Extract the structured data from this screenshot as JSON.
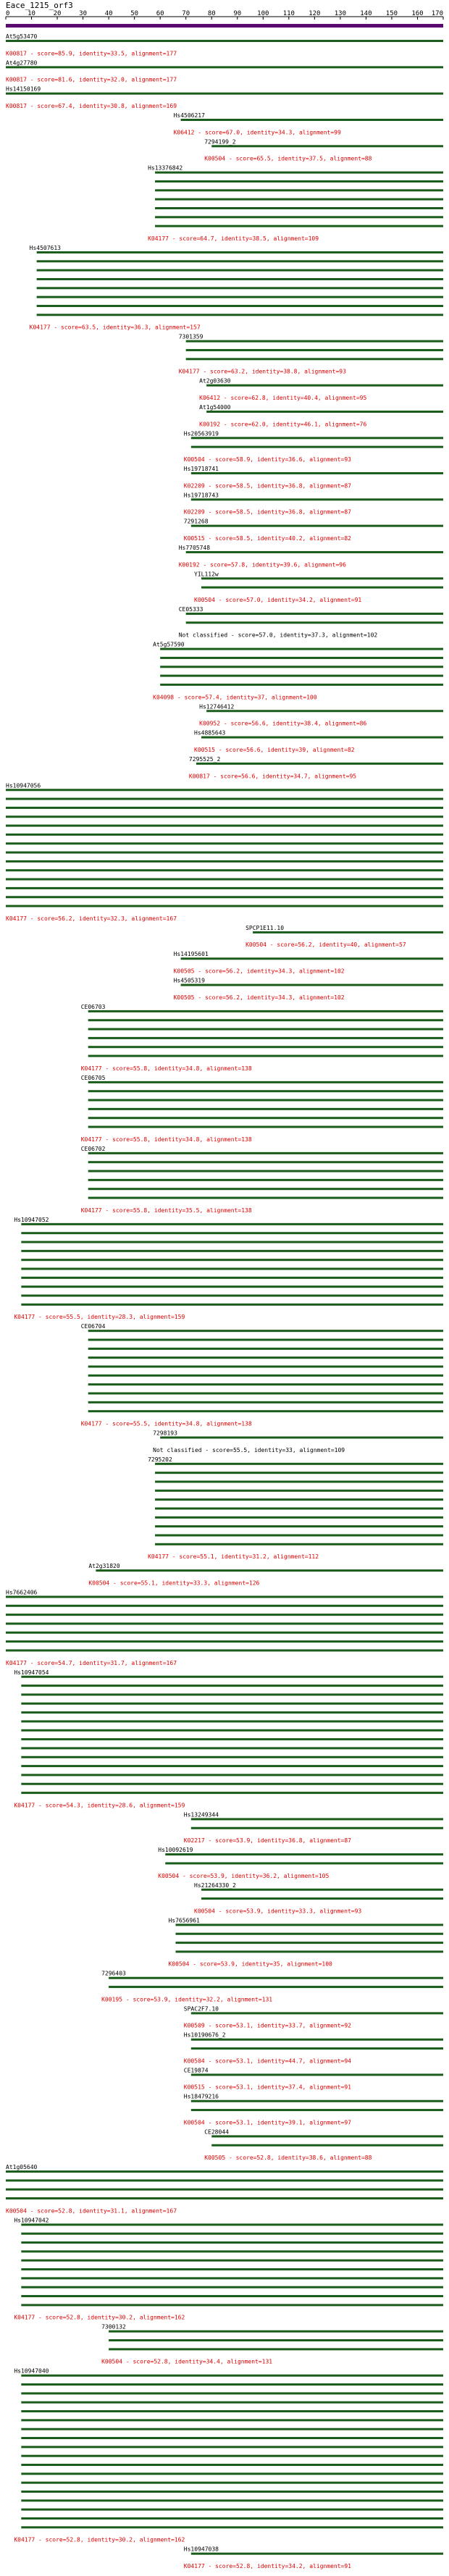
{
  "title": "Eace_1215_orf3",
  "axis": {
    "min": 0,
    "max": 170,
    "ticks": [
      0,
      10,
      20,
      30,
      40,
      50,
      60,
      70,
      80,
      90,
      100,
      110,
      120,
      130,
      140,
      150,
      160,
      170
    ]
  },
  "colors": {
    "query_bar": "#5a0a6e",
    "hit_bar": "#1a5c1a",
    "red_text": "#dd0000",
    "black_text": "#000000",
    "ruler": "#000000"
  },
  "groups": [
    {
      "name": "At5g53470",
      "desc": "K00817 - score=85.9, identity=33.5, alignment=177",
      "bars": [
        [
          0,
          170
        ]
      ]
    },
    {
      "name": "At4g27780",
      "desc": "K00817 - score=81.6, identity=32.0, alignment=177",
      "bars": [
        [
          0,
          170
        ]
      ]
    },
    {
      "name": "Hs14150169",
      "desc": "K00817 - score=67.4, identity=30.8, alignment=169",
      "bars": [
        [
          0,
          170
        ]
      ]
    },
    {
      "name": "Hs4506217",
      "desc": "K06412 - score=67.0, identity=34.3, alignment=99",
      "bars": [
        [
          68,
          170
        ]
      ]
    },
    {
      "name": "7294199_2",
      "desc": "K00504 - score=65.5, identity=37.5, alignment=88",
      "bars": [
        [
          80,
          170
        ]
      ]
    },
    {
      "name": "Hs13376842",
      "desc": "K04177 - score=64.7, identity=38.5, alignment=109",
      "bars": [
        [
          58,
          170
        ],
        [
          58,
          170
        ],
        [
          58,
          170
        ],
        [
          58,
          170
        ],
        [
          58,
          170
        ],
        [
          58,
          170
        ],
        [
          58,
          170
        ]
      ]
    },
    {
      "name": "Hs4507613",
      "desc": "K04177 - score=63.5, identity=36.3, alignment=157",
      "bars": [
        [
          12,
          170
        ],
        [
          12,
          170
        ],
        [
          12,
          170
        ],
        [
          12,
          170
        ],
        [
          12,
          170
        ],
        [
          12,
          170
        ],
        [
          12,
          170
        ],
        [
          12,
          170
        ]
      ]
    },
    {
      "name": "7301359",
      "desc": "K04177 - score=63.2, identity=38.8, alignment=93",
      "bars": [
        [
          70,
          170
        ],
        [
          70,
          170
        ],
        [
          70,
          170
        ]
      ]
    },
    {
      "name": "At2g03630",
      "desc": "K06412 - score=62.8, identity=40.4, alignment=95",
      "bars": [
        [
          78,
          170
        ]
      ]
    },
    {
      "name": "At1g54000",
      "desc": "K00192 - score=62.0, identity=46.1, alignment=76",
      "bars": [
        [
          78,
          170
        ]
      ]
    },
    {
      "name": "Hs20563919",
      "desc": "K00504 - score=58.9, identity=36.6, alignment=93",
      "bars": [
        [
          72,
          170
        ],
        [
          72,
          170
        ]
      ]
    },
    {
      "name": "Hs19718741",
      "desc": "K02209 - score=58.5, identity=36.8, alignment=87",
      "bars": [
        [
          72,
          170
        ]
      ]
    },
    {
      "name": "Hs19718743",
      "desc": "K02209 - score=58.5, identity=36.8, alignment=87",
      "bars": [
        [
          72,
          170
        ]
      ]
    },
    {
      "name": "7291268",
      "desc": "K00515 - score=58.5, identity=40.2, alignment=82",
      "bars": [
        [
          72,
          170
        ]
      ]
    },
    {
      "name": "Hs7705748",
      "desc": "K00192 - score=57.8, identity=39.6, alignment=96",
      "bars": [
        [
          70,
          170
        ]
      ]
    },
    {
      "name": "YIL112w",
      "desc": "K00504 - score=57.0, identity=34.2, alignment=91",
      "bars": [
        [
          76,
          170
        ],
        [
          76,
          170
        ]
      ]
    },
    {
      "name": "CE05333",
      "desc": "Not classified - score=57.0, identity=37.3, alignment=102",
      "bars": [
        [
          70,
          170
        ],
        [
          70,
          170
        ]
      ]
    },
    {
      "name": "At5g57590",
      "desc": "K04098 - score=57.4, identity=37, alignment=100",
      "bars": [
        [
          60,
          170
        ],
        [
          60,
          170
        ],
        [
          60,
          170
        ],
        [
          60,
          170
        ],
        [
          60,
          170
        ]
      ]
    },
    {
      "name": "Hs12746412",
      "desc": "K00952 - score=56.6, identity=38.4, alignment=86",
      "bars": [
        [
          78,
          170
        ]
      ]
    },
    {
      "name": "Hs4885643",
      "desc": "K00515 - score=56.6, identity=39, alignment=82",
      "bars": [
        [
          76,
          170
        ]
      ]
    },
    {
      "name": "7295525_2",
      "desc": "K00817 - score=56.6, identity=34.7, alignment=95",
      "bars": [
        [
          74,
          170
        ]
      ]
    },
    {
      "name": "Hs10947056",
      "desc": "K04177 - score=56.2, identity=32.3, alignment=167",
      "bars": [
        [
          0,
          170
        ],
        [
          0,
          170
        ],
        [
          0,
          170
        ],
        [
          0,
          170
        ],
        [
          0,
          170
        ],
        [
          0,
          170
        ],
        [
          0,
          170
        ],
        [
          0,
          170
        ],
        [
          0,
          170
        ],
        [
          0,
          170
        ],
        [
          0,
          170
        ],
        [
          0,
          170
        ],
        [
          0,
          170
        ],
        [
          0,
          170
        ]
      ]
    },
    {
      "name": "SPCP1E11.10",
      "desc": "K00504 - score=56.2, identity=40, alignment=57",
      "bars": [
        [
          96,
          170
        ]
      ]
    },
    {
      "name": "Hs14195601",
      "desc": "K00505 - score=56.2, identity=34.3, alignment=102",
      "bars": [
        [
          68,
          170
        ]
      ]
    },
    {
      "name": "Hs4505319",
      "desc": "K00505 - score=56.2, identity=34.3, alignment=102",
      "bars": [
        [
          68,
          170
        ]
      ]
    },
    {
      "name": "CE06703",
      "desc": "K04177 - score=55.8, identity=34.8, alignment=138",
      "bars": [
        [
          32,
          170
        ],
        [
          32,
          170
        ],
        [
          32,
          170
        ],
        [
          32,
          170
        ],
        [
          32,
          170
        ],
        [
          32,
          170
        ]
      ]
    },
    {
      "name": "CE06705",
      "desc": "K04177 - score=55.8, identity=34.8, alignment=138",
      "bars": [
        [
          32,
          170
        ],
        [
          32,
          170
        ],
        [
          32,
          170
        ],
        [
          32,
          170
        ],
        [
          32,
          170
        ],
        [
          32,
          170
        ]
      ]
    },
    {
      "name": "CE06702",
      "desc": "K04177 - score=55.8, identity=35.5, alignment=138",
      "bars": [
        [
          32,
          170
        ],
        [
          32,
          170
        ],
        [
          32,
          170
        ],
        [
          32,
          170
        ],
        [
          32,
          170
        ],
        [
          32,
          170
        ]
      ]
    },
    {
      "name": "Hs10947052",
      "desc": "K04177 - score=55.5, identity=28.3, alignment=159",
      "bars": [
        [
          6,
          170
        ],
        [
          6,
          170
        ],
        [
          6,
          170
        ],
        [
          6,
          170
        ],
        [
          6,
          170
        ],
        [
          6,
          170
        ],
        [
          6,
          170
        ],
        [
          6,
          170
        ],
        [
          6,
          170
        ],
        [
          6,
          170
        ]
      ]
    },
    {
      "name": "CE06704",
      "desc": "K04177 - score=55.5, identity=34.8, alignment=138",
      "bars": [
        [
          32,
          170
        ],
        [
          32,
          170
        ],
        [
          32,
          170
        ],
        [
          32,
          170
        ],
        [
          32,
          170
        ],
        [
          32,
          170
        ],
        [
          32,
          170
        ],
        [
          32,
          170
        ],
        [
          32,
          170
        ],
        [
          32,
          170
        ]
      ]
    },
    {
      "name": "7298193",
      "desc": "Not classified - score=55.5, identity=33, alignment=109",
      "bars": [
        [
          60,
          170
        ]
      ]
    },
    {
      "name": "7295202",
      "desc": "K04177 - score=55.1, identity=31.2, alignment=112",
      "bars": [
        [
          58,
          170
        ],
        [
          58,
          170
        ],
        [
          58,
          170
        ],
        [
          58,
          170
        ],
        [
          58,
          170
        ],
        [
          58,
          170
        ],
        [
          58,
          170
        ],
        [
          58,
          170
        ],
        [
          58,
          170
        ],
        [
          58,
          170
        ]
      ]
    },
    {
      "name": "At2g31820",
      "desc": "K00504 - score=55.1, identity=33.3, alignment=126",
      "bars": [
        [
          35,
          170
        ]
      ]
    },
    {
      "name": "Hs7662406",
      "desc": "K04177 - score=54.7, identity=31.7, alignment=167",
      "bars": [
        [
          0,
          170
        ],
        [
          0,
          170
        ],
        [
          0,
          170
        ],
        [
          0,
          170
        ],
        [
          0,
          170
        ],
        [
          0,
          170
        ],
        [
          0,
          170
        ]
      ]
    },
    {
      "name": "Hs10947054",
      "desc": "K04177 - score=54.3, identity=28.6, alignment=159",
      "bars": [
        [
          6,
          170
        ],
        [
          6,
          170
        ],
        [
          6,
          170
        ],
        [
          6,
          170
        ],
        [
          6,
          170
        ],
        [
          6,
          170
        ],
        [
          6,
          170
        ],
        [
          6,
          170
        ],
        [
          6,
          170
        ],
        [
          6,
          170
        ],
        [
          6,
          170
        ],
        [
          6,
          170
        ],
        [
          6,
          170
        ],
        [
          6,
          170
        ]
      ]
    },
    {
      "name": "Hs13249344",
      "desc": "K02217 - score=53.9, identity=36.8, alignment=87",
      "bars": [
        [
          72,
          170
        ],
        [
          72,
          170
        ]
      ]
    },
    {
      "name": "Hs10092619",
      "desc": "K00504 - score=53.9, identity=36.2, alignment=105",
      "bars": [
        [
          62,
          170
        ],
        [
          62,
          170
        ]
      ]
    },
    {
      "name": "Hs21264330_2",
      "desc": "K00504 - score=53.9, identity=33.3, alignment=93",
      "bars": [
        [
          76,
          170
        ],
        [
          76,
          170
        ]
      ]
    },
    {
      "name": "Hs7656961",
      "desc": "K00504 - score=53.9, identity=35, alignment=100",
      "bars": [
        [
          66,
          170
        ],
        [
          66,
          170
        ],
        [
          66,
          170
        ],
        [
          66,
          170
        ]
      ]
    },
    {
      "name": "7296403",
      "desc": "K00195 - score=53.9, identity=32.2, alignment=131",
      "bars": [
        [
          40,
          170
        ],
        [
          40,
          170
        ]
      ]
    },
    {
      "name": "SPAC2F7.10",
      "desc": "K00509 - score=53.1, identity=33.7, alignment=92",
      "bars": [
        [
          72,
          170
        ]
      ]
    },
    {
      "name": "Hs10190676_2",
      "desc": "K00504 - score=53.1, identity=44.7, alignment=94",
      "bars": [
        [
          72,
          170
        ],
        [
          72,
          170
        ]
      ]
    },
    {
      "name": "CE19874",
      "desc": "K00515 - score=53.1, identity=37.4, alignment=91",
      "bars": [
        [
          72,
          170
        ]
      ]
    },
    {
      "name": "Hs18479216",
      "desc": "K00504 - score=53.1, identity=39.1, alignment=97",
      "bars": [
        [
          72,
          170
        ],
        [
          72,
          170
        ]
      ]
    },
    {
      "name": "CE28044",
      "desc": "K00505 - score=52.8, identity=38.6, alignment=88",
      "bars": [
        [
          80,
          170
        ],
        [
          80,
          170
        ]
      ]
    },
    {
      "name": "At1g05640",
      "desc": "K00504 - score=52.8, identity=31.1, alignment=167",
      "bars": [
        [
          0,
          170
        ],
        [
          0,
          170
        ],
        [
          0,
          170
        ],
        [
          0,
          170
        ]
      ]
    },
    {
      "name": "Hs10947042",
      "desc": "K04177 - score=52.8, identity=30.2, alignment=162",
      "bars": [
        [
          6,
          170
        ],
        [
          6,
          170
        ],
        [
          6,
          170
        ],
        [
          6,
          170
        ],
        [
          6,
          170
        ],
        [
          6,
          170
        ],
        [
          6,
          170
        ],
        [
          6,
          170
        ],
        [
          6,
          170
        ],
        [
          6,
          170
        ]
      ]
    },
    {
      "name": "7300132",
      "desc": "K00504 - score=52.8, identity=34.4, alignment=131",
      "bars": [
        [
          40,
          170
        ],
        [
          40,
          170
        ],
        [
          40,
          170
        ]
      ]
    },
    {
      "name": "Hs10947040",
      "desc": "K04177 - score=52.8, identity=30.2, alignment=162",
      "bars": [
        [
          6,
          170
        ],
        [
          6,
          170
        ],
        [
          6,
          170
        ],
        [
          6,
          170
        ],
        [
          6,
          170
        ],
        [
          6,
          170
        ],
        [
          6,
          170
        ],
        [
          6,
          170
        ],
        [
          6,
          170
        ],
        [
          6,
          170
        ],
        [
          6,
          170
        ],
        [
          6,
          170
        ],
        [
          6,
          170
        ],
        [
          6,
          170
        ],
        [
          6,
          170
        ],
        [
          6,
          170
        ],
        [
          6,
          170
        ],
        [
          6,
          170
        ]
      ]
    },
    {
      "name": "Hs10947038",
      "desc": "K04177 - score=52.8, identity=34.2, alignment=91",
      "bars": [
        [
          72,
          170
        ]
      ]
    }
  ]
}
